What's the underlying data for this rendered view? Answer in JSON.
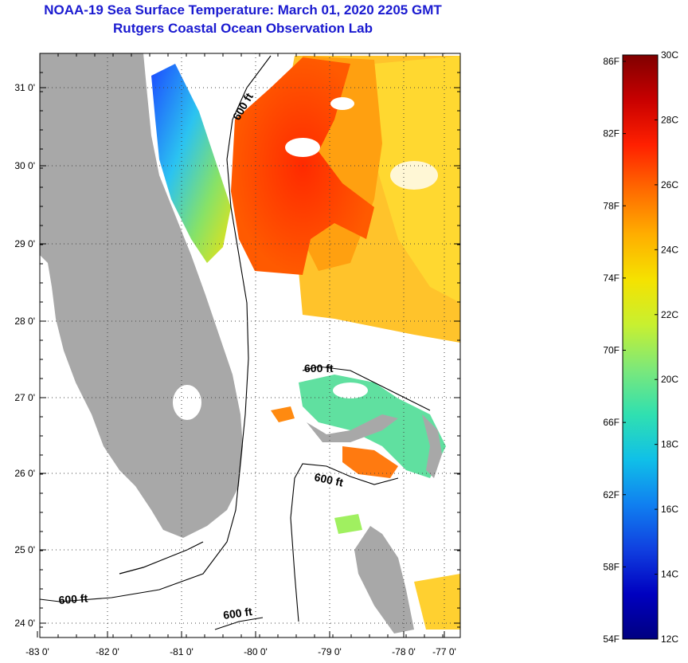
{
  "header": {
    "title": "NOAA-19 Sea Surface Temperature:  March 01, 2020 2205 GMT",
    "subtitle": "Rutgers Coastal Ocean Observation Lab"
  },
  "map": {
    "lon_labels": [
      "-83 0'",
      "-82 0'",
      "-81 0'",
      "-80 0'",
      "-79 0'",
      "-78 0'",
      "-77 0'"
    ],
    "lat_labels": [
      "31 0'",
      "30 0'",
      "29 0'",
      "28 0'",
      "27 0'",
      "26 0'",
      "25 0'",
      "24 0'"
    ],
    "contour_labels": [
      "600 ft",
      "600 ft",
      "600 ft",
      "600 ft",
      "600 ft"
    ],
    "colors": {
      "land": "#a8a8a8",
      "background": "#ffffff",
      "contour": "#000000"
    }
  },
  "colorbar": {
    "fahrenheit_labels": [
      "86F",
      "82F",
      "78F",
      "74F",
      "70F",
      "66F",
      "62F",
      "58F",
      "54F"
    ],
    "celsius_labels": [
      "30C",
      "28C",
      "26C",
      "24C",
      "22C",
      "20C",
      "18C",
      "16C",
      "14C",
      "12C"
    ],
    "gradient": [
      "#800000",
      "#c80000",
      "#ff2000",
      "#ff6a00",
      "#ffae00",
      "#f5e200",
      "#c8f030",
      "#7ce87a",
      "#30e0b0",
      "#10c0e8",
      "#1080f0",
      "#1040e0",
      "#0000c0",
      "#000080"
    ]
  }
}
